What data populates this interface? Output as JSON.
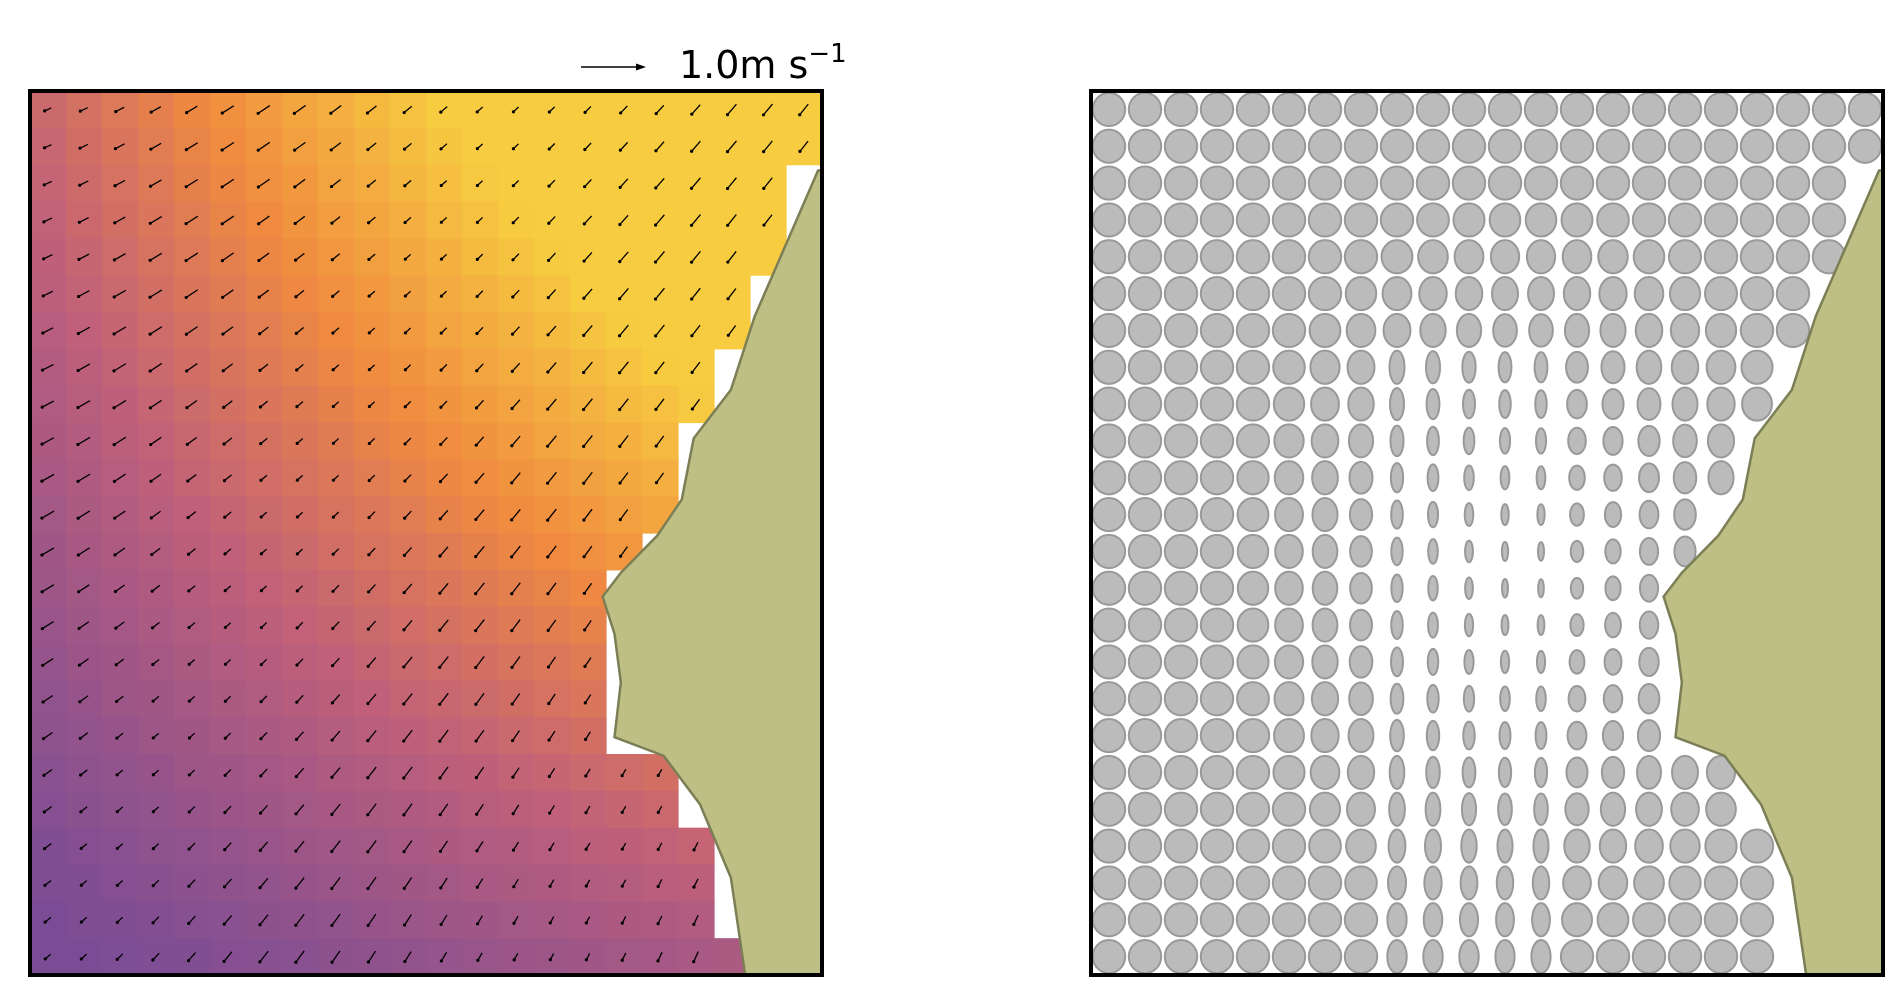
{
  "quiver_key": {
    "label": "1.0m s",
    "exponent": "−1"
  }
}
